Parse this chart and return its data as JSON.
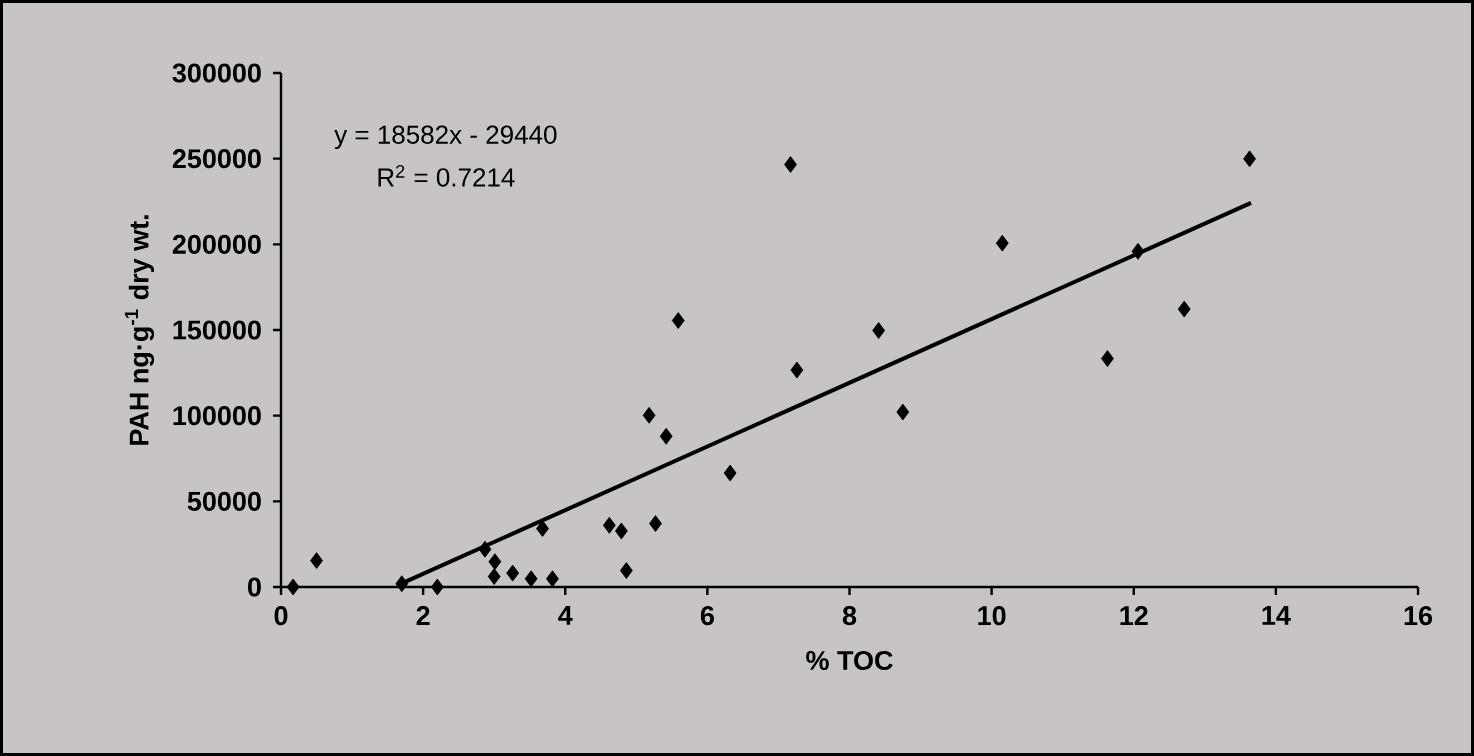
{
  "chart_data": {
    "type": "scatter",
    "xlabel": "% TOC",
    "ylabel": "PAH ng·g$^{-1}$ dry wt.",
    "annotations": [
      "y = 18582x - 29440",
      "R$^{2}$ = 0.7214"
    ],
    "xlim": [
      0,
      16
    ],
    "xticks": [
      0,
      2,
      4,
      6,
      8,
      10,
      12,
      14,
      16
    ],
    "ylim": [
      0,
      300000
    ],
    "yticks": [
      0,
      50000,
      100000,
      150000,
      200000,
      250000,
      300000
    ],
    "series": [
      {
        "marker": "diamond",
        "color": "#000000",
        "x": [
          0.17,
          0.5,
          1.7,
          2.2,
          2.87,
          3.01,
          3.0,
          3.26,
          3.52,
          3.82,
          3.68,
          4.62,
          4.79,
          4.86,
          5.27,
          5.18,
          5.42,
          6.32,
          5.59,
          7.17,
          7.26,
          8.41,
          8.75,
          10.15,
          12.06,
          12.71,
          11.63,
          13.63
        ],
        "values": [
          0,
          15400,
          1900,
          0,
          22000,
          14800,
          6100,
          8100,
          4800,
          4800,
          34100,
          36000,
          32700,
          9600,
          37000,
          100200,
          88000,
          66500,
          155500,
          246600,
          126600,
          149700,
          102100,
          200700,
          195900,
          162200,
          133300,
          249900
        ]
      },
      {
        "type": "line",
        "color": "#000000",
        "x": [
          1.7,
          13.65
        ],
        "values": [
          2100,
          224200
        ]
      }
    ]
  }
}
